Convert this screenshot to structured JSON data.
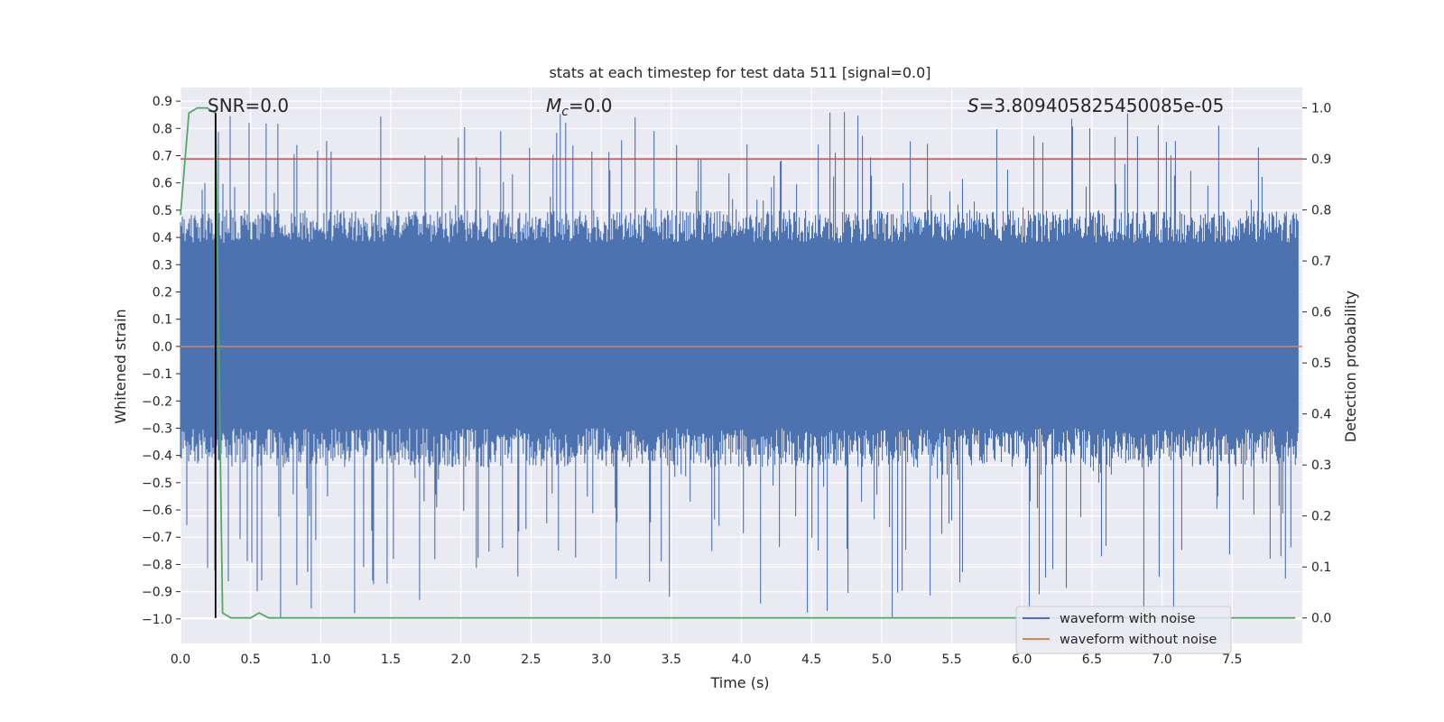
{
  "chart_data": {
    "type": "line",
    "title": "stats at each timestep for test data 511 [signal=0.0]",
    "xlabel": "Time (s)",
    "ylabel": "Whitened strain",
    "y2label": "Detection probability",
    "xlim": [
      0.0,
      8.0
    ],
    "ylim": [
      -1.09,
      0.95
    ],
    "y2lim": [
      -0.05,
      1.04
    ],
    "x_ticks": [
      "0.0",
      "0.5",
      "1.0",
      "1.5",
      "2.0",
      "2.5",
      "3.0",
      "3.5",
      "4.0",
      "4.5",
      "5.0",
      "5.5",
      "6.0",
      "6.5",
      "7.0",
      "7.5"
    ],
    "y_ticks": [
      "0.9",
      "0.8",
      "0.7",
      "0.6",
      "0.5",
      "0.4",
      "0.3",
      "0.2",
      "0.1",
      "0.0",
      "−0.1",
      "−0.2",
      "−0.3",
      "−0.4",
      "−0.5",
      "−0.6",
      "−0.7",
      "−0.8",
      "−0.9",
      "−1.0"
    ],
    "y2_ticks": [
      "1.0",
      "0.9",
      "0.8",
      "0.7",
      "0.6",
      "0.5",
      "0.4",
      "0.3",
      "0.2",
      "0.1",
      "0.0"
    ],
    "annotations": {
      "snr": "SNR=0.0",
      "mc_sym": "M",
      "mc_sub": "c",
      "mc_val": "=0.0",
      "s_sym": "S",
      "s_val": "=3.809405825450085e-05"
    },
    "threshold": 0.9,
    "marker_time": 0.25,
    "noise_band": {
      "core_low": -0.3,
      "core_high": 0.38,
      "max_peak": 0.86,
      "min_trough": -1.0
    },
    "series": [
      {
        "name": "waveform with noise",
        "color": "#4c72b0"
      },
      {
        "name": "waveform without noise",
        "color": "#dd8452",
        "value": 0.0
      },
      {
        "name": "detection probability",
        "color": "#55a868",
        "x": [
          0.0,
          0.06,
          0.12,
          0.19,
          0.25,
          0.3,
          0.36,
          0.5,
          0.56,
          0.63,
          7.95
        ],
        "y": [
          0.79,
          0.99,
          1.0,
          1.0,
          0.99,
          0.01,
          0.0,
          0.0,
          0.01,
          0.0,
          0.0
        ]
      }
    ],
    "legend": {
      "placement": "bottom-right",
      "entries": [
        "waveform with noise",
        "waveform without noise"
      ]
    },
    "colors": {
      "background": "#eaeaf2",
      "grid": "#ffffff",
      "threshold": "#c44e52",
      "marker": "#000000"
    }
  }
}
